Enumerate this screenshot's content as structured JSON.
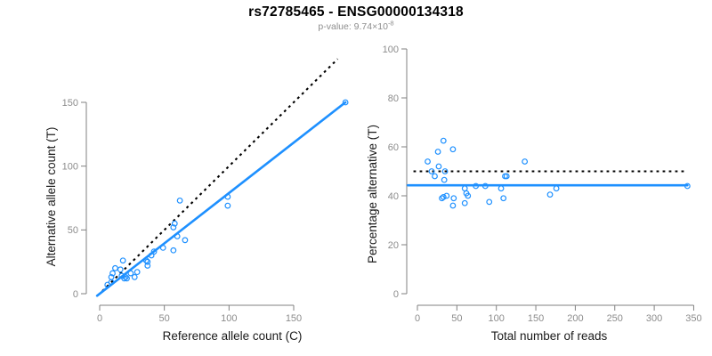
{
  "title": "rs72785465 - ENSG00000134318",
  "subtitle": {
    "label": "p-value: ",
    "mantissa": "9.74",
    "times_symbol": "×",
    "base": "10",
    "exponent": "-8"
  },
  "colors": {
    "point_blue": "#1E90FF",
    "fit_line_blue": "#1E90FF",
    "reference_line_black": "#000000",
    "axis_line": "#808080",
    "tick_label": "#8c8c8c",
    "axis_title": "#1a1a1a",
    "title": "#000000",
    "subtitle": "#8e8e8e",
    "background": "#ffffff"
  },
  "chart_data": [
    {
      "type": "scatter",
      "name": "allele-count-scatter",
      "xlabel": "Reference allele count (C)",
      "ylabel": "Alternative allele count (T)",
      "xlim": [
        0,
        190
      ],
      "ylim": [
        0,
        155
      ],
      "xticks": [
        0,
        50,
        100,
        150
      ],
      "yticks": [
        0,
        50,
        100,
        150
      ],
      "grid": false,
      "legend": false,
      "points": [
        [
          6,
          7
        ],
        [
          9,
          9
        ],
        [
          9,
          13
        ],
        [
          10,
          16
        ],
        [
          12,
          20
        ],
        [
          16,
          19
        ],
        [
          17,
          14
        ],
        [
          18,
          26
        ],
        [
          19,
          12
        ],
        [
          20,
          13
        ],
        [
          21,
          12
        ],
        [
          24,
          16
        ],
        [
          27,
          13
        ],
        [
          29,
          17
        ],
        [
          36,
          26
        ],
        [
          37,
          22
        ],
        [
          37,
          25
        ],
        [
          40,
          30
        ],
        [
          42,
          33
        ],
        [
          49,
          36
        ],
        [
          57,
          34
        ],
        [
          57,
          52
        ],
        [
          58,
          55
        ],
        [
          60,
          45
        ],
        [
          62,
          73
        ],
        [
          66,
          42
        ],
        [
          99,
          69
        ],
        [
          99,
          76
        ],
        [
          190,
          150
        ]
      ],
      "lines": [
        {
          "name": "identity-line",
          "style": "dotted",
          "color": "#000000",
          "from": [
            2,
            2
          ],
          "to": [
            184,
            184
          ]
        },
        {
          "name": "regression-line",
          "style": "solid",
          "color": "#1E90FF",
          "from": [
            -2,
            -1.6
          ],
          "to": [
            190,
            150
          ]
        }
      ]
    },
    {
      "type": "scatter",
      "name": "percentage-alternative-scatter",
      "xlabel": "Total number of reads",
      "ylabel": "Percentage alternative (T)",
      "xlim": [
        0,
        350
      ],
      "ylim": [
        0,
        100
      ],
      "xticks": [
        0,
        50,
        100,
        150,
        200,
        250,
        300,
        350
      ],
      "yticks": [
        0,
        20,
        40,
        60,
        80,
        100
      ],
      "grid": false,
      "legend": false,
      "points": [
        [
          13,
          54
        ],
        [
          18,
          50
        ],
        [
          22,
          48
        ],
        [
          26,
          58
        ],
        [
          27,
          52
        ],
        [
          31,
          39
        ],
        [
          33,
          39.5
        ],
        [
          33,
          62.5
        ],
        [
          34,
          46.5
        ],
        [
          35,
          50
        ],
        [
          37,
          40
        ],
        [
          45,
          36
        ],
        [
          45,
          59
        ],
        [
          46,
          39
        ],
        [
          60,
          37
        ],
        [
          60,
          43
        ],
        [
          62,
          41
        ],
        [
          64,
          40
        ],
        [
          74,
          44
        ],
        [
          86,
          44
        ],
        [
          91,
          37.5
        ],
        [
          106,
          43
        ],
        [
          109,
          39
        ],
        [
          111,
          48
        ],
        [
          113,
          48
        ],
        [
          136,
          54
        ],
        [
          168,
          40.5
        ],
        [
          176,
          43
        ],
        [
          342,
          44
        ]
      ],
      "lines": [
        {
          "name": "fifty-percent-line",
          "style": "dotted",
          "color": "#000000",
          "from": [
            -5,
            50
          ],
          "to": [
            338,
            50
          ]
        },
        {
          "name": "mean-percentage-line",
          "style": "solid",
          "color": "#1E90FF",
          "from": [
            -12,
            44.3
          ],
          "to": [
            342,
            44.3
          ]
        }
      ]
    }
  ]
}
